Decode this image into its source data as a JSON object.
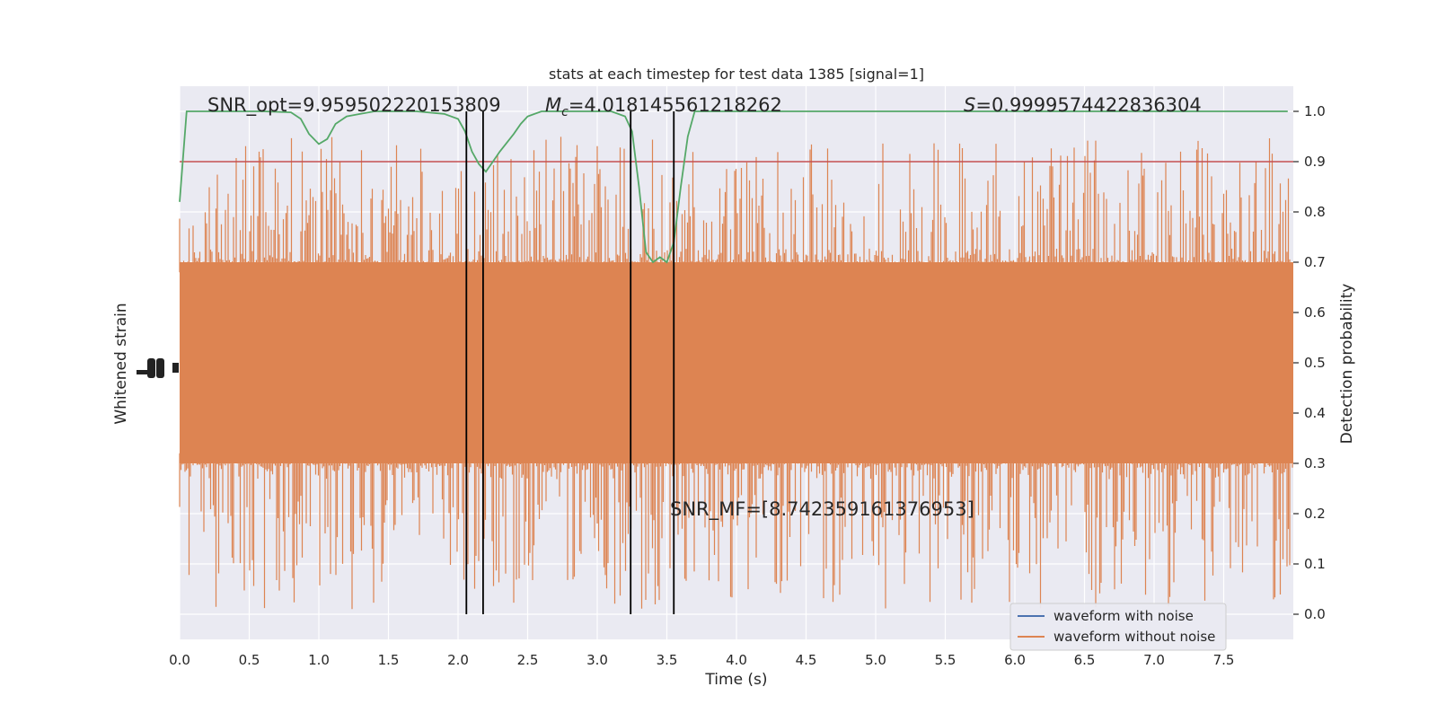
{
  "chart_data": {
    "type": "line",
    "title": "stats at each timestep for test data 1385 [signal=1]",
    "xlabel": "Time (s)",
    "ylabel_left": "Whitened strain",
    "ylabel_right": "Detection probability",
    "xlim": [
      0.0,
      8.0
    ],
    "ylim_right": [
      -0.05,
      1.05
    ],
    "x_ticks": [
      "0.0",
      "0.5",
      "1.0",
      "1.5",
      "2.0",
      "2.5",
      "3.0",
      "3.5",
      "4.0",
      "4.5",
      "5.0",
      "5.5",
      "6.0",
      "6.5",
      "7.0",
      "7.5"
    ],
    "x_tick_values": [
      0,
      0.5,
      1,
      1.5,
      2,
      2.5,
      3,
      3.5,
      4,
      4.5,
      5,
      5.5,
      6,
      6.5,
      7,
      7.5
    ],
    "y_right_ticks": [
      "0.0",
      "0.1",
      "0.2",
      "0.3",
      "0.4",
      "0.5",
      "0.6",
      "0.7",
      "0.8",
      "0.9",
      "1.0"
    ],
    "y_right_tick_values": [
      0,
      0.1,
      0.2,
      0.3,
      0.4,
      0.5,
      0.6,
      0.7,
      0.8,
      0.9,
      1.0
    ],
    "grid": true,
    "legend_position": "bottom-right",
    "threshold": 0.9,
    "vlines": [
      2.06,
      2.18,
      3.24,
      3.55
    ],
    "annotations": {
      "snr_opt": "SNR_opt=9.959502220153809",
      "chirp_mass_symbol": "M",
      "chirp_mass_sub": "c",
      "chirp_mass_value": "=4.018145561218262",
      "spin_symbol": "S",
      "spin_value": "=0.9999574422836304",
      "snr_mf": "SNR_MF=[8.742359161376953]"
    },
    "series": [
      {
        "name": "waveform with noise",
        "color": "#4c72b0",
        "note_values": "not visibly drawn (hidden behind orange series)"
      },
      {
        "name": "waveform without noise",
        "color": "#dd8452",
        "band_typical": [
          0.3,
          0.7
        ],
        "band_extremes": [
          0.01,
          0.95
        ]
      },
      {
        "name": "",
        "color": "#55a868",
        "x": [
          0.0,
          0.05,
          0.1,
          0.2,
          0.4,
          0.6,
          0.8,
          0.87,
          0.93,
          1.0,
          1.06,
          1.12,
          1.2,
          1.3,
          1.4,
          1.5,
          1.7,
          1.9,
          2.0,
          2.05,
          2.1,
          2.15,
          2.2,
          2.25,
          2.3,
          2.4,
          2.45,
          2.5,
          2.6,
          2.8,
          3.0,
          3.1,
          3.2,
          3.25,
          3.3,
          3.35,
          3.4,
          3.45,
          3.5,
          3.55,
          3.6,
          3.65,
          3.7,
          3.8,
          4.0,
          5.0,
          6.0,
          7.0,
          7.96
        ],
        "y": [
          0.82,
          1.0,
          1.0,
          1.0,
          1.0,
          1.0,
          0.998,
          0.985,
          0.955,
          0.935,
          0.945,
          0.975,
          0.99,
          0.995,
          1.0,
          1.0,
          1.0,
          0.995,
          0.985,
          0.96,
          0.92,
          0.895,
          0.88,
          0.9,
          0.92,
          0.955,
          0.975,
          0.99,
          1.0,
          1.0,
          1.0,
          1.0,
          0.99,
          0.96,
          0.85,
          0.72,
          0.7,
          0.71,
          0.7,
          0.74,
          0.85,
          0.95,
          1.0,
          1.0,
          1.0,
          1.0,
          1.0,
          1.0,
          1.0
        ]
      },
      {
        "name": "",
        "color": "#c44e52",
        "x": [
          0.0,
          8.0
        ],
        "y": [
          0.9,
          0.9
        ]
      }
    ]
  }
}
